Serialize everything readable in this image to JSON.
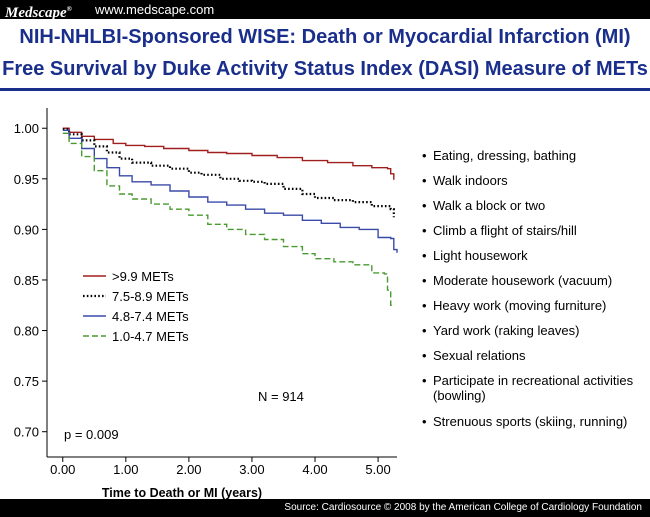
{
  "header": {
    "logo": "Medscape",
    "logo_mark": "®",
    "site": "www.medscape.com"
  },
  "title_lines": [
    "NIH-NHLBI-Sponsored WISE: Death or Myocardial Infarction (MI)",
    "Free Survival by Duke Activity Status Index (DASI) Measure of METs"
  ],
  "activities": [
    "Eating, dressing, bathing",
    "Walk indoors",
    "Walk a block or two",
    "Climb a flight of stairs/hill",
    "Light housework",
    "Moderate housework (vacuum)",
    "Heavy work (moving furniture)",
    "Yard work (raking leaves)",
    "Sexual relations",
    "Participate in recreational activities (bowling)",
    "Strenuous sports (skiing, running)"
  ],
  "footer": {
    "source": "Source: Cardiosource © 2008 by the American College of Cardiology Foundation"
  },
  "chart_data": {
    "type": "line",
    "title": "",
    "xlabel": "Time to Death or MI (years)",
    "ylabel": "",
    "xlim": [
      -0.25,
      5.3
    ],
    "ylim": [
      0.675,
      1.02
    ],
    "xticks": [
      0,
      1,
      2,
      3,
      4,
      5
    ],
    "xtick_labels": [
      "0.00",
      "1.00",
      "2.00",
      "3.00",
      "4.00",
      "5.00"
    ],
    "yticks": [
      0.7,
      0.75,
      0.8,
      0.85,
      0.9,
      0.95,
      1.0
    ],
    "ytick_labels": [
      "0.70",
      "0.75",
      "0.80",
      "0.85",
      "0.90",
      "0.95",
      "1.00"
    ],
    "grid": false,
    "legend_position": "lower-left",
    "annotations": {
      "p_value": "p = 0.009",
      "n": "N = 914"
    },
    "series": [
      {
        "name": ">9.9 METs",
        "color": "#a01e1e",
        "dash": "solid",
        "points": [
          [
            0,
            1.0
          ],
          [
            0.1,
            0.996
          ],
          [
            0.3,
            0.992
          ],
          [
            0.5,
            0.989
          ],
          [
            0.8,
            0.985
          ],
          [
            1.0,
            0.983
          ],
          [
            1.3,
            0.982
          ],
          [
            1.6,
            0.98
          ],
          [
            2.0,
            0.978
          ],
          [
            2.3,
            0.976
          ],
          [
            2.6,
            0.975
          ],
          [
            3.0,
            0.973
          ],
          [
            3.4,
            0.971
          ],
          [
            3.8,
            0.968
          ],
          [
            4.2,
            0.966
          ],
          [
            4.6,
            0.963
          ],
          [
            4.9,
            0.961
          ],
          [
            5.15,
            0.96
          ],
          [
            5.2,
            0.955
          ],
          [
            5.25,
            0.949
          ]
        ]
      },
      {
        "name": "7.5-8.9 METs",
        "color": "#000000",
        "dash": "dotted",
        "points": [
          [
            0,
            0.999
          ],
          [
            0.1,
            0.994
          ],
          [
            0.3,
            0.988
          ],
          [
            0.5,
            0.982
          ],
          [
            0.7,
            0.976
          ],
          [
            0.9,
            0.97
          ],
          [
            1.1,
            0.966
          ],
          [
            1.4,
            0.963
          ],
          [
            1.7,
            0.96
          ],
          [
            2.0,
            0.956
          ],
          [
            2.2,
            0.954
          ],
          [
            2.5,
            0.95
          ],
          [
            2.8,
            0.948
          ],
          [
            3.0,
            0.947
          ],
          [
            3.2,
            0.945
          ],
          [
            3.5,
            0.94
          ],
          [
            3.8,
            0.935
          ],
          [
            4.0,
            0.931
          ],
          [
            4.3,
            0.929
          ],
          [
            4.6,
            0.927
          ],
          [
            4.9,
            0.923
          ],
          [
            5.2,
            0.92
          ],
          [
            5.25,
            0.912
          ]
        ]
      },
      {
        "name": "4.8-7.4 METs",
        "color": "#3a4aa8",
        "dash": "solid",
        "points": [
          [
            0,
            0.998
          ],
          [
            0.1,
            0.99
          ],
          [
            0.3,
            0.98
          ],
          [
            0.5,
            0.97
          ],
          [
            0.7,
            0.961
          ],
          [
            0.9,
            0.953
          ],
          [
            1.1,
            0.947
          ],
          [
            1.4,
            0.944
          ],
          [
            1.7,
            0.938
          ],
          [
            2.0,
            0.932
          ],
          [
            2.3,
            0.927
          ],
          [
            2.6,
            0.924
          ],
          [
            2.9,
            0.92
          ],
          [
            3.2,
            0.916
          ],
          [
            3.5,
            0.914
          ],
          [
            3.8,
            0.909
          ],
          [
            4.1,
            0.906
          ],
          [
            4.4,
            0.902
          ],
          [
            4.7,
            0.9
          ],
          [
            5.0,
            0.892
          ],
          [
            5.2,
            0.891
          ],
          [
            5.25,
            0.88
          ],
          [
            5.3,
            0.877
          ]
        ]
      },
      {
        "name": "1.0-4.7 METs",
        "color": "#4a9a32",
        "dash": "dashed",
        "points": [
          [
            0,
            0.995
          ],
          [
            0.1,
            0.985
          ],
          [
            0.3,
            0.972
          ],
          [
            0.5,
            0.958
          ],
          [
            0.7,
            0.943
          ],
          [
            0.9,
            0.935
          ],
          [
            1.1,
            0.93
          ],
          [
            1.4,
            0.925
          ],
          [
            1.7,
            0.92
          ],
          [
            2.0,
            0.914
          ],
          [
            2.3,
            0.905
          ],
          [
            2.6,
            0.9
          ],
          [
            2.9,
            0.895
          ],
          [
            3.2,
            0.89
          ],
          [
            3.5,
            0.883
          ],
          [
            3.8,
            0.876
          ],
          [
            4.0,
            0.871
          ],
          [
            4.3,
            0.868
          ],
          [
            4.6,
            0.865
          ],
          [
            4.9,
            0.857
          ],
          [
            5.1,
            0.856
          ],
          [
            5.15,
            0.84
          ],
          [
            5.2,
            0.825
          ],
          [
            5.25,
            0.825
          ]
        ]
      }
    ]
  }
}
